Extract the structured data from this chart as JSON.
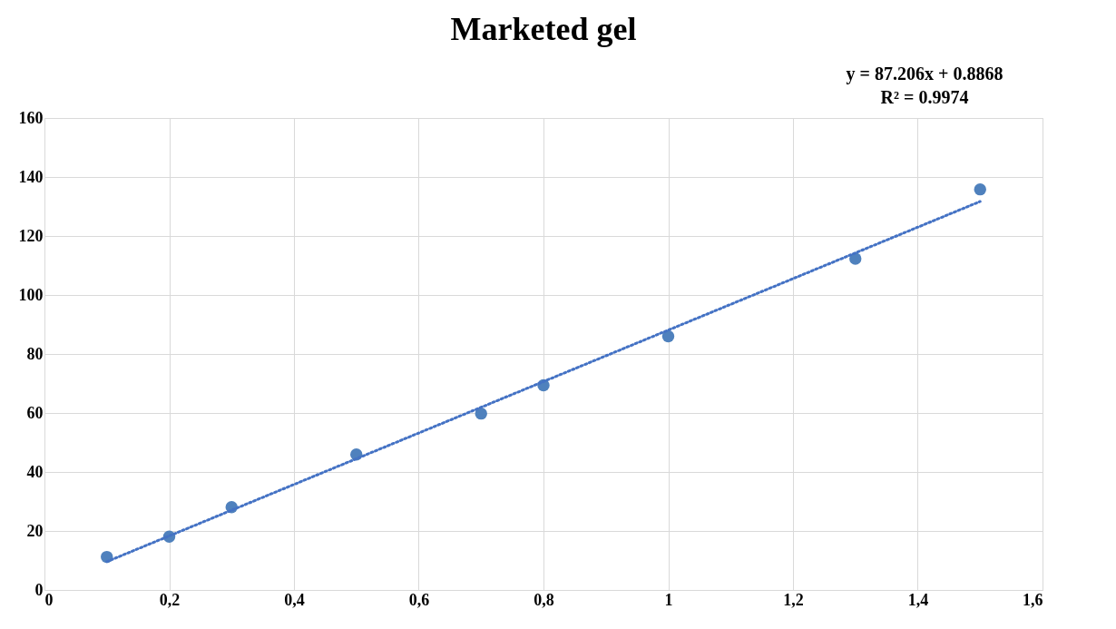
{
  "chart_data": {
    "type": "scatter",
    "title": "Marketed gel",
    "annotations": [
      "y = 87.206x + 0.8868",
      "R² = 0.9974"
    ],
    "x": [
      0.1,
      0.2,
      0.3,
      0.5,
      0.7,
      0.8,
      1.0,
      1.3,
      1.5
    ],
    "series": [
      {
        "marker": "circle",
        "color": "#4f81bd",
        "values": [
          11.2,
          18.1,
          28.1,
          45.9,
          59.8,
          69.4,
          86.0,
          112.3,
          135.8
        ]
      },
      {
        "type": "line",
        "color": "#4472c4",
        "line_style": "dotted",
        "x": [
          0.1,
          1.5
        ],
        "values": [
          9.6,
          131.7
        ]
      }
    ],
    "xlim": [
      0,
      1.6
    ],
    "xticks": [
      0,
      {
        "value": 0.2,
        "label": "0,2"
      },
      {
        "value": 0.4,
        "label": "0,4"
      },
      {
        "value": 0.6,
        "label": "0,6"
      },
      {
        "value": 0.8,
        "label": "0,8"
      },
      1,
      {
        "value": 1.2,
        "label": "1,2"
      },
      {
        "value": 1.4,
        "label": "1,4"
      },
      {
        "value": 1.6,
        "label": "1,6"
      }
    ],
    "ylim": [
      0,
      160
    ],
    "yticks": [
      0,
      20,
      40,
      60,
      80,
      100,
      120,
      140,
      160
    ],
    "grid": true
  }
}
